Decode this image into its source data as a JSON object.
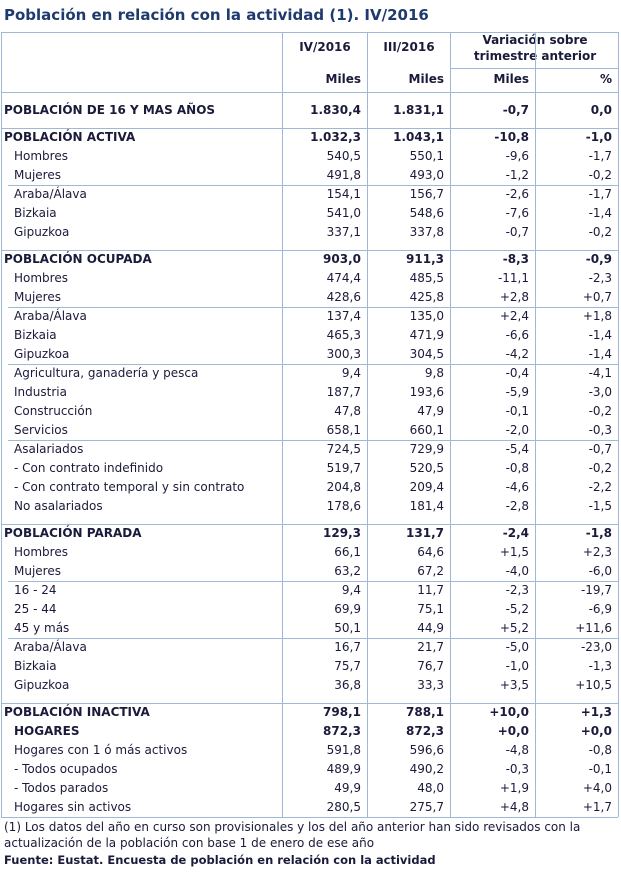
{
  "title": "Población en relación con la actividad (1). IV/2016",
  "table": {
    "header": {
      "col1": "IV/2016",
      "col2": "III/2016",
      "variation": "Variación sobre trimestre anterior",
      "units": [
        "Miles",
        "Miles",
        "Miles",
        "%"
      ]
    },
    "sections": [
      {
        "label": "POBLACIÓN DE 16 Y MAS AÑOS",
        "values": [
          "1.830,4",
          "1.831,1",
          "-0,7",
          "0,0"
        ],
        "groups": []
      },
      {
        "label": "POBLACIÓN ACTIVA",
        "values": [
          "1.032,3",
          "1.043,1",
          "-10,8",
          "-1,0"
        ],
        "groups": [
          [
            {
              "label": "Hombres",
              "values": [
                "540,5",
                "550,1",
                "-9,6",
                "-1,7"
              ]
            },
            {
              "label": "Mujeres",
              "values": [
                "491,8",
                "493,0",
                "-1,2",
                "-0,2"
              ]
            }
          ],
          [
            {
              "label": "Araba/Álava",
              "values": [
                "154,1",
                "156,7",
                "-2,6",
                "-1,7"
              ]
            },
            {
              "label": "Bizkaia",
              "values": [
                "541,0",
                "548,6",
                "-7,6",
                "-1,4"
              ]
            },
            {
              "label": "Gipuzkoa",
              "values": [
                "337,1",
                "337,8",
                "-0,7",
                "-0,2"
              ]
            }
          ]
        ]
      },
      {
        "label": "POBLACIÓN OCUPADA",
        "values": [
          "903,0",
          "911,3",
          "-8,3",
          "-0,9"
        ],
        "groups": [
          [
            {
              "label": "Hombres",
              "values": [
                "474,4",
                "485,5",
                "-11,1",
                "-2,3"
              ]
            },
            {
              "label": "Mujeres",
              "values": [
                "428,6",
                "425,8",
                "+2,8",
                "+0,7"
              ]
            }
          ],
          [
            {
              "label": "Araba/Álava",
              "values": [
                "137,4",
                "135,0",
                "+2,4",
                "+1,8"
              ]
            },
            {
              "label": "Bizkaia",
              "values": [
                "465,3",
                "471,9",
                "-6,6",
                "-1,4"
              ]
            },
            {
              "label": "Gipuzkoa",
              "values": [
                "300,3",
                "304,5",
                "-4,2",
                "-1,4"
              ]
            }
          ],
          [
            {
              "label": "Agricultura, ganadería y pesca",
              "values": [
                "9,4",
                "9,8",
                "-0,4",
                "-4,1"
              ]
            },
            {
              "label": "Industria",
              "values": [
                "187,7",
                "193,6",
                "-5,9",
                "-3,0"
              ]
            },
            {
              "label": "Construcción",
              "values": [
                "47,8",
                "47,9",
                "-0,1",
                "-0,2"
              ]
            },
            {
              "label": "Servicios",
              "values": [
                "658,1",
                "660,1",
                "-2,0",
                "-0,3"
              ]
            }
          ],
          [
            {
              "label": "Asalariados",
              "values": [
                "724,5",
                "729,9",
                "-5,4",
                "-0,7"
              ]
            },
            {
              "label": "- Con contrato indefinido",
              "values": [
                "519,7",
                "520,5",
                "-0,8",
                "-0,2"
              ]
            },
            {
              "label": "- Con contrato temporal y sin contrato",
              "values": [
                "204,8",
                "209,4",
                "-4,6",
                "-2,2"
              ]
            },
            {
              "label": "No asalariados",
              "values": [
                "178,6",
                "181,4",
                "-2,8",
                "-1,5"
              ]
            }
          ]
        ]
      },
      {
        "label": "POBLACIÓN PARADA",
        "values": [
          "129,3",
          "131,7",
          "-2,4",
          "-1,8"
        ],
        "groups": [
          [
            {
              "label": "Hombres",
              "values": [
                "66,1",
                "64,6",
                "+1,5",
                "+2,3"
              ]
            },
            {
              "label": "Mujeres",
              "values": [
                "63,2",
                "67,2",
                "-4,0",
                "-6,0"
              ]
            }
          ],
          [
            {
              "label": "16 - 24",
              "values": [
                "9,4",
                "11,7",
                "-2,3",
                "-19,7"
              ]
            },
            {
              "label": "25 - 44",
              "values": [
                "69,9",
                "75,1",
                "-5,2",
                "-6,9"
              ]
            },
            {
              "label": "45  y más",
              "values": [
                "50,1",
                "44,9",
                "+5,2",
                "+11,6"
              ]
            }
          ],
          [
            {
              "label": "Araba/Álava",
              "values": [
                "16,7",
                "21,7",
                "-5,0",
                "-23,0"
              ]
            },
            {
              "label": "Bizkaia",
              "values": [
                "75,7",
                "76,7",
                "-1,0",
                "-1,3"
              ]
            },
            {
              "label": "Gipuzkoa",
              "values": [
                "36,8",
                "33,3",
                "+3,5",
                "+10,5"
              ]
            }
          ]
        ]
      },
      {
        "label": "POBLACIÓN INACTIVA",
        "values": [
          "798,1",
          "788,1",
          "+10,0",
          "+1,3"
        ],
        "groups": []
      },
      {
        "label": "HOGARES",
        "values": [
          "872,3",
          "872,3",
          "+0,0",
          "+0,0"
        ],
        "groups": [
          [
            {
              "label": "Hogares con 1 ó más activos",
              "values": [
                "591,8",
                "596,6",
                "-4,8",
                "-0,8"
              ]
            },
            {
              "label": "- Todos ocupados",
              "values": [
                "489,9",
                "490,2",
                "-0,3",
                "-0,1"
              ]
            },
            {
              "label": "- Todos parados",
              "values": [
                "49,9",
                "48,0",
                "+1,9",
                "+4,0"
              ]
            },
            {
              "label": "Hogares sin activos",
              "values": [
                "280,5",
                "275,7",
                "+4,8",
                "+1,7"
              ]
            }
          ]
        ]
      }
    ]
  },
  "footnote": "(1) Los datos del año en curso son provisionales y los del año anterior han sido revisados con la actualización de la población con base 1 de enero de ese año",
  "source": "Fuente: Eustat. Encuesta de población en relación con la actividad"
}
